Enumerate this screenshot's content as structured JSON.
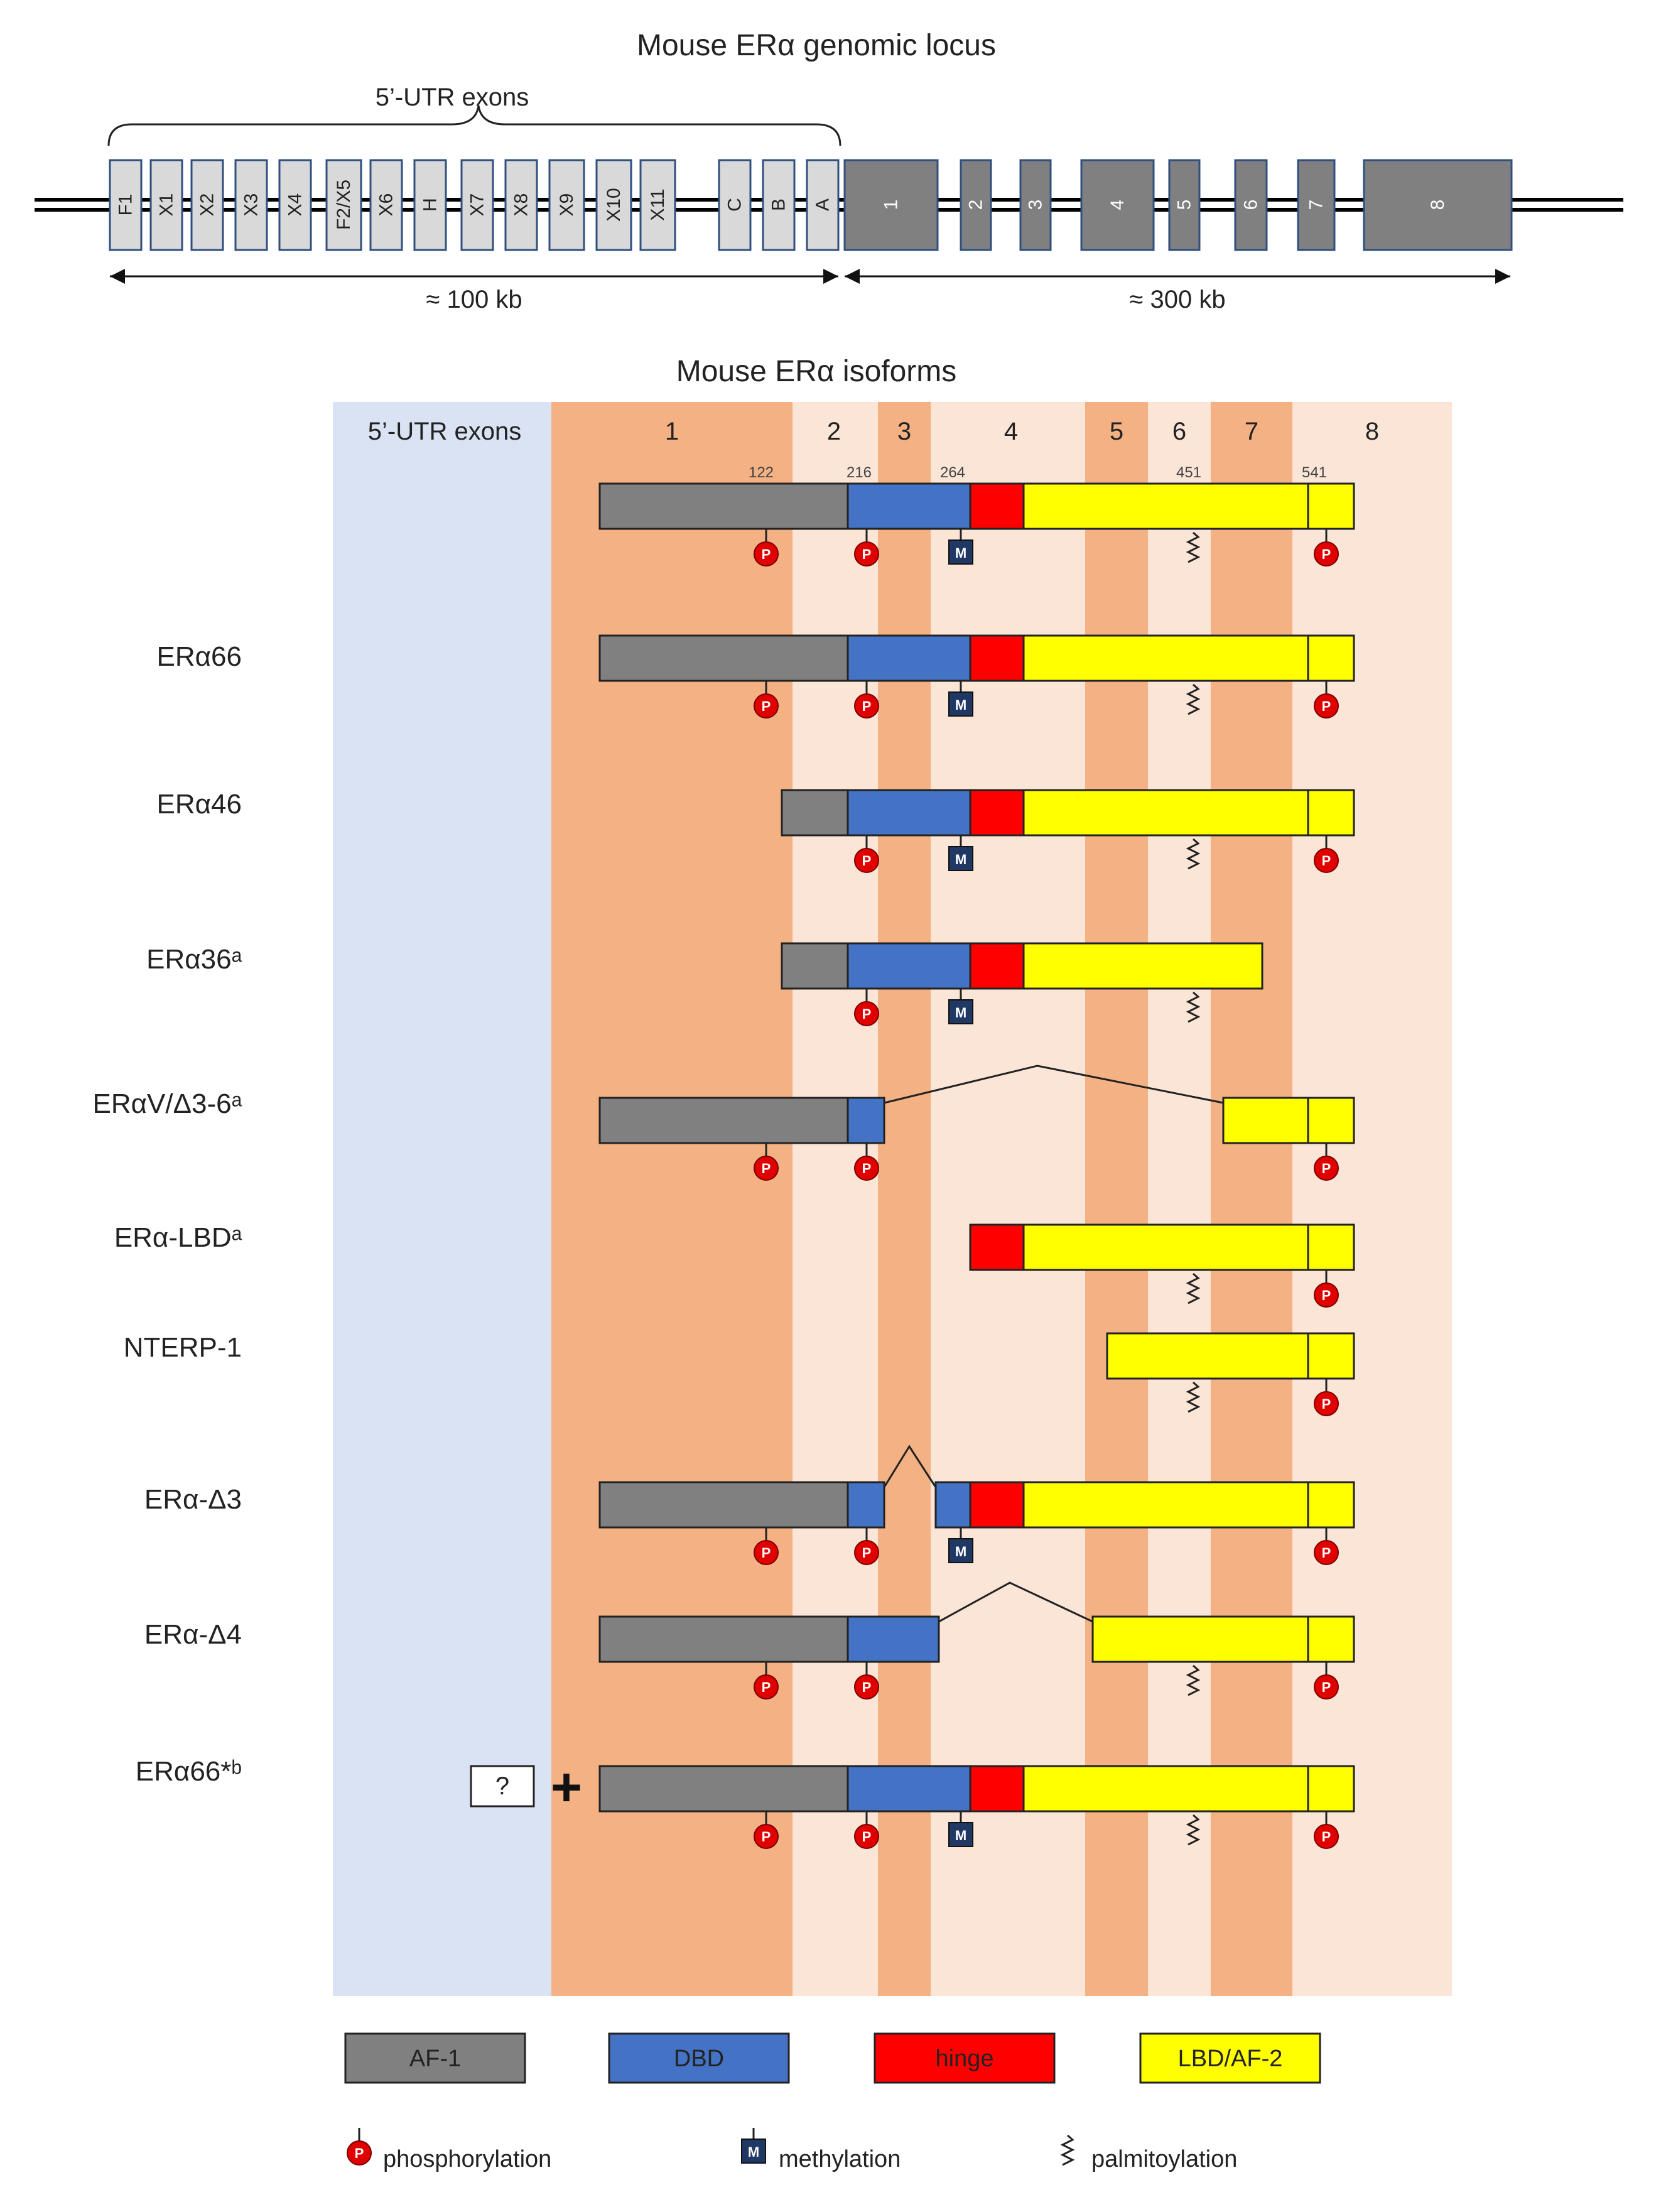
{
  "genomic": {
    "title": "Mouse ERα genomic locus",
    "utr_label": "5’-UTR exons",
    "utr_exons": [
      "F1",
      "X1",
      "X2",
      "X3",
      "X4",
      "F2/X5",
      "X6",
      "H",
      "X7",
      "X8",
      "X9",
      "X10",
      "X11",
      "C",
      "B",
      "A"
    ],
    "coding_exons": [
      "1",
      "2",
      "3",
      "4",
      "5",
      "6",
      "7",
      "8"
    ],
    "span_utr": "≈ 100 kb",
    "span_coding": "≈ 300 kb"
  },
  "isoforms": {
    "title": "Mouse ERα isoforms",
    "utr_column": "5’-UTR exons",
    "exon_columns": [
      "1",
      "2",
      "3",
      "4",
      "5",
      "6",
      "7",
      "8"
    ],
    "positions": [
      "122",
      "216",
      "264",
      "451",
      "541"
    ],
    "rows": [
      {
        "label": ""
      },
      {
        "label": "ERα66"
      },
      {
        "label": "ERα46"
      },
      {
        "label": "ERα36ᵃ"
      },
      {
        "label": "ERαV/Δ3-6ᵃ"
      },
      {
        "label": "ERα-LBDᵃ"
      },
      {
        "label": "NTERP-1"
      },
      {
        "label": "ERα-Δ3"
      },
      {
        "label": "ERα-Δ4"
      },
      {
        "label": "ERα66*ᵇ"
      }
    ],
    "unknown_box": "?",
    "plus": "+"
  },
  "legend": {
    "af1": "AF-1",
    "dbd": "DBD",
    "hinge": "hinge",
    "lbd": "LBD/AF-2",
    "phospho": "phosphorylation",
    "methyl": "methylation",
    "palm": "palmitoylation"
  },
  "symbols": {
    "p": "P",
    "m": "M"
  },
  "colors": {
    "af1": "#808080",
    "dbd": "#4472c4",
    "hinge": "#ff0000",
    "lbd": "#ffff00",
    "utr_bg": "#dae3f3",
    "exon_dark": "#f4b183",
    "exon_light": "#fbe5d6",
    "gen_utr_exon": "#d9d9d9",
    "gen_coding_exon": "#808080"
  }
}
